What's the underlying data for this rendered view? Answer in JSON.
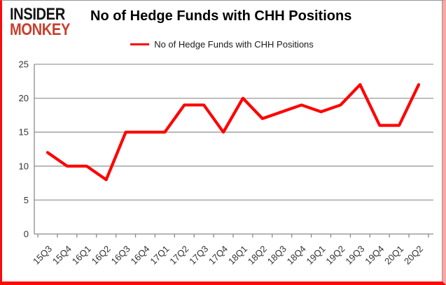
{
  "brand": {
    "line1": "INSIDER",
    "line2": "MONKEY"
  },
  "header": {
    "title": "No of Hedge Funds with CHH Positions"
  },
  "legend": {
    "label": "No of Hedge Funds with CHH Positions"
  },
  "chart_data": {
    "type": "line",
    "title": "No of Hedge Funds with CHH Positions",
    "categories": [
      "15Q3",
      "15Q4",
      "16Q1",
      "16Q2",
      "16Q3",
      "16Q4",
      "17Q1",
      "17Q2",
      "17Q3",
      "17Q4",
      "18Q1",
      "18Q2",
      "18Q3",
      "18Q4",
      "19Q1",
      "19Q2",
      "19Q3",
      "19Q4",
      "20Q1",
      "20Q2"
    ],
    "series": [
      {
        "name": "No of Hedge Funds with CHH Positions",
        "values": [
          12,
          10,
          10,
          8,
          15,
          15,
          15,
          19,
          19,
          15,
          20,
          17,
          18,
          19,
          18,
          19,
          22,
          16,
          16,
          22
        ]
      }
    ],
    "ylim": [
      0,
      25
    ],
    "yticks": [
      0,
      5,
      10,
      15,
      20,
      25
    ],
    "grid": true,
    "legend_position": "top-center",
    "xlabel": "",
    "ylabel": ""
  },
  "colors": {
    "line_red": "#fe0000",
    "brand_red": "#c7402c",
    "border_red": "#fb0a0a",
    "grid_gray": "#9a9a9a",
    "axis_gray": "#8a8a8a",
    "tick_text": "#333333",
    "title_text": "#000000"
  }
}
